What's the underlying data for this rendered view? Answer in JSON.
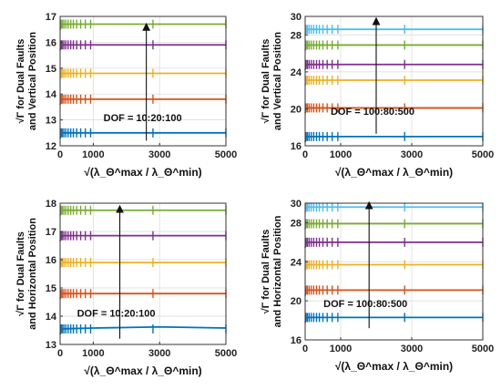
{
  "colors": {
    "blue": "#0072BD",
    "orange": "#D95319",
    "yellow": "#EDB120",
    "purple": "#7E2F8E",
    "green": "#77AC30",
    "lightblue": "#4DBEEE"
  },
  "chart_data": [
    {
      "type": "line",
      "ylabel_line1": "√Γ for Dual Faults",
      "ylabel_line2": "and Vertical Position",
      "xlabel": "√(λ_Θ^max / λ_Θ^min)",
      "annotation": "DOF = 10:20:100",
      "annotation_arrow_x": [
        2600,
        2600
      ],
      "annotation_arrow_y": [
        12.2,
        16.6
      ],
      "xlim": [
        0,
        5000
      ],
      "ylim": [
        12,
        17
      ],
      "xticks": [
        0,
        1000,
        3000,
        5000
      ],
      "yticks": [
        12,
        13,
        14,
        15,
        16,
        17
      ],
      "grid": true,
      "series": [
        {
          "color": "blue",
          "x": [
            0,
            5000
          ],
          "y": [
            12.5,
            12.5
          ]
        },
        {
          "color": "orange",
          "x": [
            0,
            5000
          ],
          "y": [
            13.8,
            13.8
          ]
        },
        {
          "color": "yellow",
          "x": [
            0,
            5000
          ],
          "y": [
            14.8,
            14.8
          ]
        },
        {
          "color": "purple",
          "x": [
            0,
            5000
          ],
          "y": [
            15.9,
            15.9
          ]
        },
        {
          "color": "green",
          "x": [
            0,
            5000
          ],
          "y": [
            16.7,
            16.7
          ]
        }
      ]
    },
    {
      "type": "line",
      "ylabel_line1": "√Γ for Dual Faults",
      "ylabel_line2": "and Vertical Position",
      "xlabel": "√(λ_Θ^max / λ_Θ^min)",
      "annotation": "DOF = 100:80:500",
      "annotation_arrow_x": [
        2000,
        2000
      ],
      "annotation_arrow_y": [
        17.3,
        29.5
      ],
      "xlim": [
        0,
        5000
      ],
      "ylim": [
        16,
        30
      ],
      "xticks": [
        0,
        1000,
        3000,
        5000
      ],
      "yticks": [
        16,
        20,
        24,
        28,
        30
      ],
      "grid": true,
      "series": [
        {
          "color": "blue",
          "x": [
            0,
            5000
          ],
          "y": [
            17.0,
            17.0
          ]
        },
        {
          "color": "orange",
          "x": [
            0,
            5000
          ],
          "y": [
            20.1,
            20.1
          ]
        },
        {
          "color": "yellow",
          "x": [
            0,
            5000
          ],
          "y": [
            23.1,
            23.1
          ]
        },
        {
          "color": "purple",
          "x": [
            0,
            5000
          ],
          "y": [
            24.8,
            24.8
          ]
        },
        {
          "color": "green",
          "x": [
            0,
            5000
          ],
          "y": [
            26.9,
            26.9
          ]
        },
        {
          "color": "lightblue",
          "x": [
            0,
            5000
          ],
          "y": [
            28.6,
            28.6
          ]
        }
      ]
    },
    {
      "type": "line",
      "ylabel_line1": "√Γ for Dual Faults",
      "ylabel_line2": "and Horizontal Position",
      "xlabel": "√(λ_Θ^max / λ_Θ^min)",
      "annotation": "DOF = 10:20:100",
      "annotation_arrow_x": [
        1800,
        1800
      ],
      "annotation_arrow_y": [
        13.2,
        17.8
      ],
      "xlim": [
        0,
        5000
      ],
      "ylim": [
        13,
        18
      ],
      "xticks": [
        0,
        1000,
        3000,
        5000
      ],
      "yticks": [
        13,
        14,
        15,
        16,
        17,
        18
      ],
      "grid": true,
      "series": [
        {
          "color": "blue",
          "x": [
            0,
            1000,
            3000,
            5000
          ],
          "y": [
            13.55,
            13.58,
            13.62,
            13.58
          ]
        },
        {
          "color": "orange",
          "x": [
            0,
            5000
          ],
          "y": [
            14.8,
            14.8
          ]
        },
        {
          "color": "yellow",
          "x": [
            0,
            5000
          ],
          "y": [
            15.9,
            15.9
          ]
        },
        {
          "color": "purple",
          "x": [
            0,
            5000
          ],
          "y": [
            16.85,
            16.85
          ]
        },
        {
          "color": "green",
          "x": [
            0,
            5000
          ],
          "y": [
            17.75,
            17.75
          ]
        }
      ]
    },
    {
      "type": "line",
      "ylabel_line1": "√Γ for Dual Faults",
      "ylabel_line2": "and Horizontal Position",
      "xlabel": "√(λ_Θ^max / λ_Θ^min)",
      "annotation": "DOF = 100:80:500",
      "annotation_arrow_x": [
        1800,
        1800
      ],
      "annotation_arrow_y": [
        17.2,
        29.8
      ],
      "xlim": [
        0,
        5000
      ],
      "ylim": [
        16,
        30
      ],
      "xticks": [
        0,
        1000,
        3000,
        5000
      ],
      "yticks": [
        16,
        20,
        24,
        28,
        30
      ],
      "grid": true,
      "series": [
        {
          "color": "blue",
          "x": [
            0,
            5000
          ],
          "y": [
            18.3,
            18.3
          ]
        },
        {
          "color": "orange",
          "x": [
            0,
            5000
          ],
          "y": [
            21.1,
            21.1
          ]
        },
        {
          "color": "yellow",
          "x": [
            0,
            5000
          ],
          "y": [
            23.7,
            23.7
          ]
        },
        {
          "color": "purple",
          "x": [
            0,
            5000
          ],
          "y": [
            26.0,
            26.0
          ]
        },
        {
          "color": "green",
          "x": [
            0,
            5000
          ],
          "y": [
            27.9,
            27.9
          ]
        },
        {
          "color": "lightblue",
          "x": [
            0,
            5000
          ],
          "y": [
            29.6,
            29.6
          ]
        }
      ]
    }
  ]
}
